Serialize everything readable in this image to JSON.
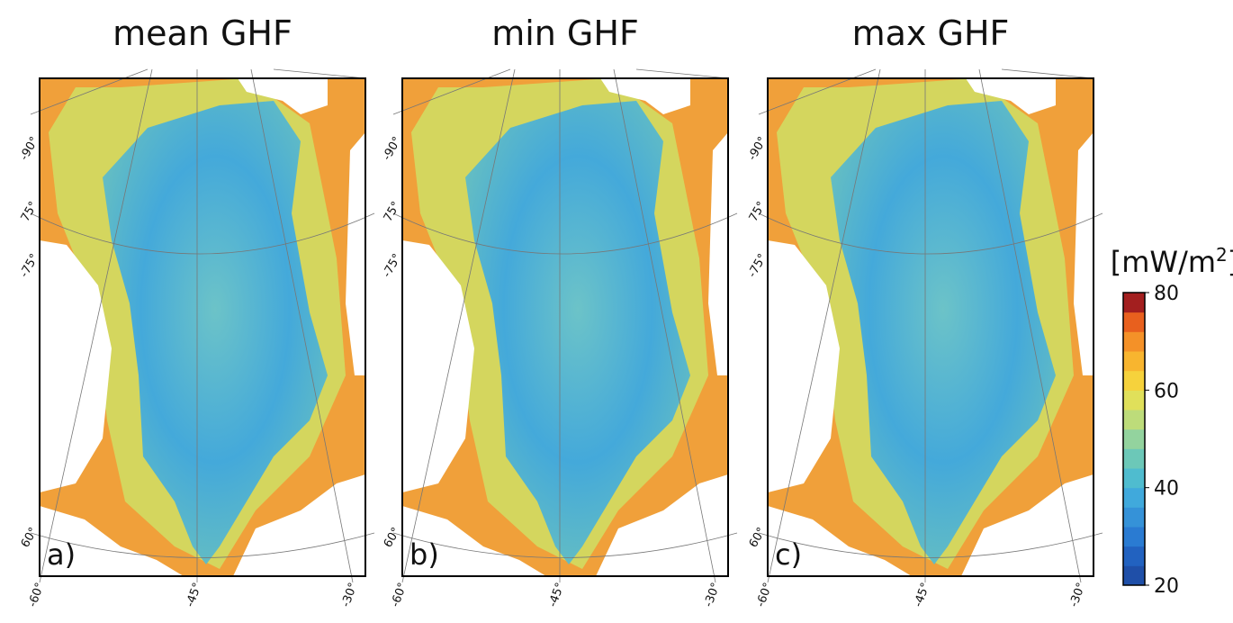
{
  "panels": [
    {
      "title": "mean GHF",
      "label": "a)"
    },
    {
      "title": "min GHF",
      "label": "b)"
    },
    {
      "title": "max GHF",
      "label": "c)"
    }
  ],
  "graticule": {
    "left": [
      "-90°",
      "75°",
      "-75°",
      "60°"
    ],
    "bottom": [
      "-60°",
      "-45°",
      "-30°"
    ]
  },
  "colorbar": {
    "unit": "[mW/m",
    "unit_sup": "2",
    "unit_end": "]",
    "range": [
      20,
      80
    ],
    "ticks": [
      20,
      40,
      60,
      80
    ],
    "colors": [
      "#1f4fa8",
      "#2262c0",
      "#2a7bd2",
      "#3592d8",
      "#40a9dc",
      "#4fbccf",
      "#6cc8b8",
      "#93d39e",
      "#bddc7a",
      "#e0e05a",
      "#f6d23c",
      "#f8b52f",
      "#f49128",
      "#e8601e",
      "#a31f1f"
    ]
  }
}
